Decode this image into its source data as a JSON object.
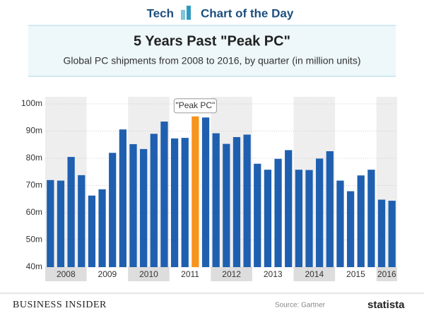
{
  "chart_data": {
    "type": "bar",
    "header": {
      "section": "Tech",
      "series_name": "Chart of the Day"
    },
    "title": "5 Years Past \"Peak PC\"",
    "subtitle": "Global PC shipments from 2008 to 2016, by quarter (in million units)",
    "x_groups": [
      "2008",
      "2009",
      "2010",
      "2011",
      "2012",
      "2013",
      "2014",
      "2015",
      "2016"
    ],
    "categories": [
      null,
      null,
      null,
      null,
      null,
      null,
      null,
      null,
      null,
      null,
      null,
      null,
      null,
      null,
      null,
      null,
      null,
      null,
      null,
      null,
      null,
      null,
      null,
      null,
      null,
      null,
      null,
      null,
      null,
      null,
      null,
      null,
      null,
      null
    ],
    "values": [
      72,
      71.8,
      80.5,
      73.8,
      66.3,
      68.6,
      82,
      90.6,
      85.2,
      83.4,
      89,
      93.5,
      87.3,
      87.5,
      95.4,
      95,
      89.2,
      85.3,
      87.8,
      88.7,
      78,
      75.8,
      79.8,
      83,
      75.8,
      75.7,
      79.9,
      82.6,
      71.8,
      67.9,
      73.7,
      75.8,
      64.8,
      64.4
    ],
    "colors": [
      "#1f5fb0",
      "#1f5fb0",
      "#1f5fb0",
      "#1f5fb0",
      "#1f5fb0",
      "#1f5fb0",
      "#1f5fb0",
      "#1f5fb0",
      "#1f5fb0",
      "#1f5fb0",
      "#1f5fb0",
      "#1f5fb0",
      "#1f5fb0",
      "#1f5fb0",
      "#f7941d",
      "#1f5fb0",
      "#1f5fb0",
      "#1f5fb0",
      "#1f5fb0",
      "#1f5fb0",
      "#1f5fb0",
      "#1f5fb0",
      "#1f5fb0",
      "#1f5fb0",
      "#1f5fb0",
      "#1f5fb0",
      "#1f5fb0",
      "#1f5fb0",
      "#1f5fb0",
      "#1f5fb0",
      "#1f5fb0",
      "#1f5fb0",
      "#1f5fb0",
      "#1f5fb0"
    ],
    "annotation": "\"Peak PC\"",
    "ylim": [
      40,
      100
    ],
    "yticks": [
      {
        "value": 40,
        "label": "40m"
      },
      {
        "value": 50,
        "label": "50m"
      },
      {
        "value": 60,
        "label": "60m"
      },
      {
        "value": 70,
        "label": "70m"
      },
      {
        "value": 80,
        "label": "80m"
      },
      {
        "value": 90,
        "label": "90m"
      },
      {
        "value": 100,
        "label": "100m"
      }
    ],
    "grid": true,
    "footer": {
      "publisher": "BUSINESS INSIDER",
      "source": "Source: Gartner",
      "brand": "statista"
    }
  }
}
